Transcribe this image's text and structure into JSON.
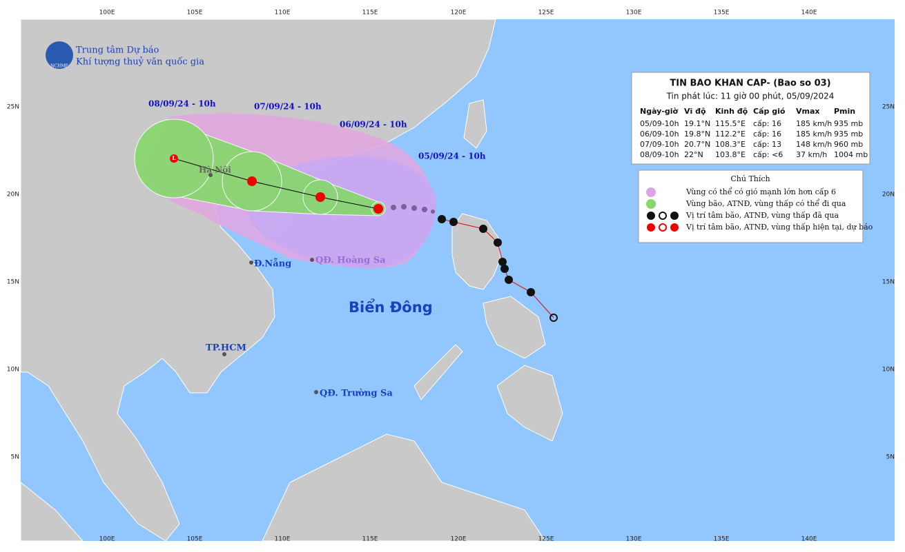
{
  "header": {
    "org_line1": "Trung tâm Dự báo",
    "org_line2": "Khí tượng thuỷ văn quốc gia",
    "logo": "NCHMF"
  },
  "bulletin": {
    "title": "TIN BAO KHAN CAP- (Bao so 03)",
    "issued": "Tin phát lúc: 11 giờ 00 phút, 05/09/2024",
    "columns": [
      "Ngày-giờ",
      "Vĩ độ",
      "Kinh độ",
      "Cấp gió",
      "Vmax",
      "Pmin"
    ],
    "rows": [
      [
        "05/09-10h",
        "19.1°N",
        "115.5°E",
        "cấp: 16",
        "185 km/h",
        "935 mb"
      ],
      [
        "06/09-10h",
        "19.8°N",
        "112.2°E",
        "cấp: 16",
        "185 km/h",
        "935 mb"
      ],
      [
        "07/09-10h",
        "20.7°N",
        "108.3°E",
        "cấp: 13",
        "148 km/h",
        "960 mb"
      ],
      [
        "08/09-10h",
        "22°N",
        "103.8°E",
        "cấp: <6",
        "37 km/h",
        "1004 mb"
      ]
    ]
  },
  "legend": {
    "title": "Chú Thích",
    "items": [
      "Vùng có thể có gió mạnh lớn hơn cấp 6",
      "Vùng bão, ATNĐ, vùng thấp có thể đi qua",
      "Vị trí tâm bão, ATNĐ, vùng thấp đã qua",
      "Vị trí tâm bão, ATNĐ, vùng thấp hiện tại, dự báo"
    ]
  },
  "map": {
    "lon_labels": [
      "100E",
      "105E",
      "110E",
      "115E",
      "120E",
      "125E",
      "130E",
      "135E",
      "140E"
    ],
    "lat_labels": [
      "25N",
      "20N",
      "15N",
      "10N",
      "5N"
    ],
    "forecast_times": [
      "08/09/24 - 10h",
      "07/09/24 - 10h",
      "06/09/24 - 10h",
      "05/09/24 - 10h"
    ],
    "places": [
      "Hà Nội",
      "Đ.Nẵng",
      "QĐ. Hoàng Sa",
      "TP.HCM",
      "QĐ. Trường Sa"
    ],
    "sea": "Biển Đông"
  }
}
